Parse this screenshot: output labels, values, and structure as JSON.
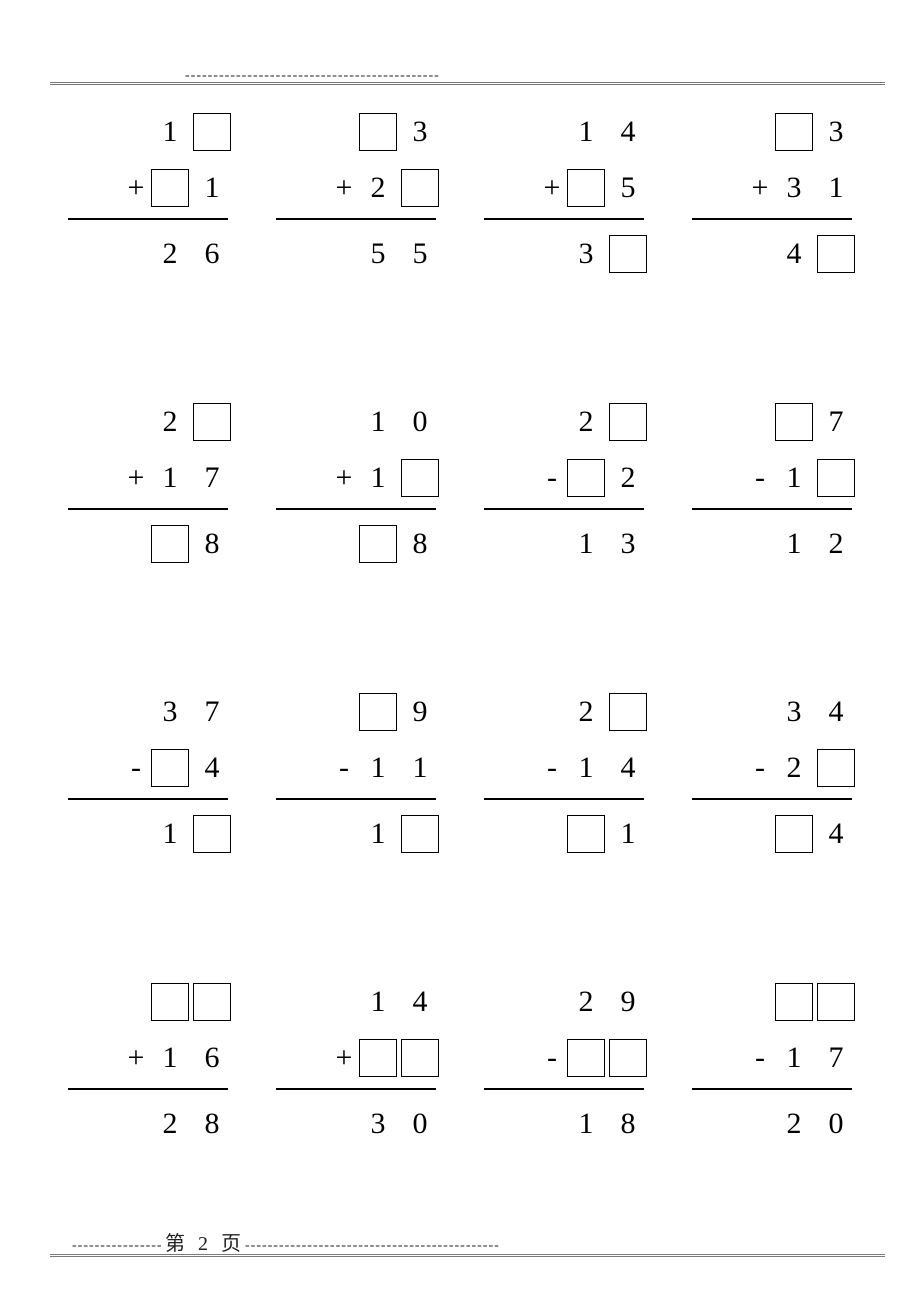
{
  "page_label": "第 2 页",
  "dash_segment": "---------------------------------------------",
  "dash_segment_short_l": "----------------",
  "dash_segment_short_r": "---------------------------------------------",
  "box_border_color": "#000000",
  "rule_color": "#7a7a7a",
  "text_color": "#000000",
  "background_color": "#ffffff",
  "font_size_digits": 30,
  "problems": [
    {
      "op": "+",
      "row1": [
        "1",
        null
      ],
      "row2": [
        null,
        "1"
      ],
      "row3": [
        "2",
        "6"
      ]
    },
    {
      "op": "+",
      "row1": [
        null,
        "3"
      ],
      "row2": [
        "2",
        null
      ],
      "row3": [
        "5",
        "5"
      ]
    },
    {
      "op": "+",
      "row1": [
        "1",
        "4"
      ],
      "row2": [
        null,
        "5"
      ],
      "row3": [
        "3",
        null
      ]
    },
    {
      "op": "+",
      "row1": [
        null,
        "3"
      ],
      "row2": [
        "3",
        "1"
      ],
      "row3": [
        "4",
        null
      ]
    },
    {
      "op": "+",
      "row1": [
        "2",
        null
      ],
      "row2": [
        "1",
        "7"
      ],
      "row3": [
        null,
        "8"
      ]
    },
    {
      "op": "+",
      "row1": [
        "1",
        "0"
      ],
      "row2": [
        "1",
        null
      ],
      "row3": [
        null,
        "8"
      ]
    },
    {
      "op": "-",
      "row1": [
        "2",
        null
      ],
      "row2": [
        null,
        "2"
      ],
      "row3": [
        "1",
        "3"
      ]
    },
    {
      "op": "-",
      "row1": [
        null,
        "7"
      ],
      "row2": [
        "1",
        null
      ],
      "row3": [
        "1",
        "2"
      ]
    },
    {
      "op": "-",
      "row1": [
        "3",
        "7"
      ],
      "row2": [
        null,
        "4"
      ],
      "row3": [
        "1",
        null
      ]
    },
    {
      "op": "-",
      "row1": [
        null,
        "9"
      ],
      "row2": [
        "1",
        "1"
      ],
      "row3": [
        "1",
        null
      ]
    },
    {
      "op": "-",
      "row1": [
        "2",
        null
      ],
      "row2": [
        "1",
        "4"
      ],
      "row3": [
        null,
        "1"
      ]
    },
    {
      "op": "-",
      "row1": [
        "3",
        "4"
      ],
      "row2": [
        "2",
        null
      ],
      "row3": [
        null,
        "4"
      ]
    },
    {
      "op": "+",
      "row1": [
        null,
        null
      ],
      "row2": [
        "1",
        "6"
      ],
      "row3": [
        "2",
        "8"
      ]
    },
    {
      "op": "+",
      "row1": [
        "1",
        "4"
      ],
      "row2": [
        null,
        null
      ],
      "row3": [
        "3",
        "0"
      ]
    },
    {
      "op": "-",
      "row1": [
        "2",
        "9"
      ],
      "row2": [
        null,
        null
      ],
      "row3": [
        "1",
        "8"
      ]
    },
    {
      "op": "-",
      "row1": [
        null,
        null
      ],
      "row2": [
        "1",
        "7"
      ],
      "row3": [
        "2",
        "0"
      ]
    }
  ]
}
